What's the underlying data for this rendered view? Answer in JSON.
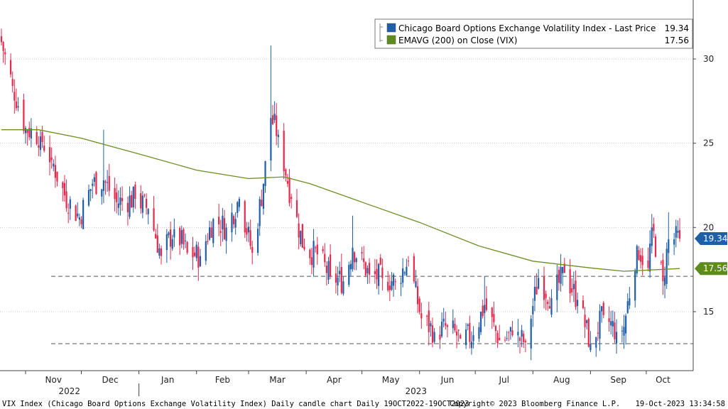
{
  "chart_data": {
    "type": "candlestick",
    "title": "VIX Index (Chicago Board Options Exchange Volatility Index) Daily candle chart  Daily 19OCT2022-19OCT2023",
    "copyright": "Copyright© 2023 Bloomberg Finance L.P.",
    "timestamp": "19-Oct-2023 13:34:58",
    "ylim": [
      11.5,
      33.5
    ],
    "yticks": [
      15,
      20,
      25,
      30
    ],
    "grid": true,
    "legend_placement": "top-right",
    "x_months": [
      "Nov",
      "Dec",
      "Jan",
      "Feb",
      "Mar",
      "Apr",
      "May",
      "Jun",
      "Jul",
      "Aug",
      "Sep",
      "Oct"
    ],
    "x_years": [
      "2022",
      "2023"
    ],
    "support_levels": [
      17.1,
      13.1
    ],
    "legend": [
      {
        "name": "Chicago Board Options Exchange Volatility Index - Last Price",
        "value": "19.34",
        "color": "#1f5fa8"
      },
      {
        "name": "EMAVG (200)  on Close (VIX)",
        "value": "17.56",
        "color": "#5e8c1c"
      }
    ],
    "last_price_tag": {
      "value": "19.34",
      "color": "#1f5fa8"
    },
    "ema_tag": {
      "value": "17.56",
      "color": "#5e8c1c"
    },
    "up_color": "#1f5fa8",
    "down_color": "#e8274b",
    "ema_color": "#6b8e23",
    "ohlc_anchors": [
      {
        "date": "2022-10-19",
        "close": 31.0,
        "high": 31.8
      },
      {
        "date": "2022-10-25",
        "close": 28.4
      },
      {
        "date": "2022-11-01",
        "close": 25.9
      },
      {
        "date": "2022-11-09",
        "close": 25.4
      },
      {
        "date": "2022-11-15",
        "close": 24.0
      },
      {
        "date": "2022-11-22",
        "close": 21.9
      },
      {
        "date": "2022-11-30",
        "close": 20.6
      },
      {
        "date": "2022-12-07",
        "close": 22.6
      },
      {
        "date": "2022-12-13",
        "close": 22.8,
        "high": 25.8
      },
      {
        "date": "2022-12-20",
        "close": 21.5
      },
      {
        "date": "2022-12-30",
        "close": 21.7
      },
      {
        "date": "2023-01-06",
        "close": 21.1
      },
      {
        "date": "2023-01-13",
        "close": 18.3
      },
      {
        "date": "2023-01-20",
        "close": 19.9
      },
      {
        "date": "2023-01-27",
        "close": 18.5
      },
      {
        "date": "2023-02-03",
        "close": 18.3
      },
      {
        "date": "2023-02-10",
        "close": 20.5
      },
      {
        "date": "2023-02-17",
        "close": 20.0
      },
      {
        "date": "2023-02-24",
        "close": 21.7
      },
      {
        "date": "2023-03-03",
        "close": 18.5
      },
      {
        "date": "2023-03-09",
        "close": 22.6
      },
      {
        "date": "2023-03-13",
        "close": 26.5,
        "high": 30.8
      },
      {
        "date": "2023-03-17",
        "close": 25.5
      },
      {
        "date": "2023-03-24",
        "close": 21.7
      },
      {
        "date": "2023-03-31",
        "close": 18.7
      },
      {
        "date": "2023-04-07",
        "close": 18.4
      },
      {
        "date": "2023-04-14",
        "close": 17.1
      },
      {
        "date": "2023-04-21",
        "close": 16.8
      },
      {
        "date": "2023-04-26",
        "close": 18.8,
        "high": 20.7
      },
      {
        "date": "2023-05-05",
        "close": 17.2
      },
      {
        "date": "2023-05-12",
        "close": 17.0
      },
      {
        "date": "2023-05-19",
        "close": 16.8
      },
      {
        "date": "2023-05-26",
        "close": 18.0
      },
      {
        "date": "2023-06-02",
        "close": 14.6
      },
      {
        "date": "2023-06-09",
        "close": 13.8
      },
      {
        "date": "2023-06-16",
        "close": 14.1
      },
      {
        "date": "2023-06-23",
        "close": 13.4
      },
      {
        "date": "2023-06-30",
        "close": 13.6
      },
      {
        "date": "2023-07-06",
        "close": 15.4,
        "high": 17.1
      },
      {
        "date": "2023-07-14",
        "close": 13.3
      },
      {
        "date": "2023-07-21",
        "close": 13.6
      },
      {
        "date": "2023-07-28",
        "close": 13.2
      },
      {
        "date": "2023-08-04",
        "close": 17.0
      },
      {
        "date": "2023-08-11",
        "close": 15.8
      },
      {
        "date": "2023-08-18",
        "close": 17.3,
        "high": 18.2
      },
      {
        "date": "2023-08-25",
        "close": 15.7
      },
      {
        "date": "2023-09-01",
        "close": 13.1
      },
      {
        "date": "2023-09-08",
        "close": 14.8
      },
      {
        "date": "2023-09-15",
        "close": 13.8
      },
      {
        "date": "2023-09-19",
        "close": 14.1,
        "low": 12.8
      },
      {
        "date": "2023-09-26",
        "close": 18.9
      },
      {
        "date": "2023-10-02",
        "close": 17.6
      },
      {
        "date": "2023-10-04",
        "close": 20.0,
        "high": 20.8
      },
      {
        "date": "2023-10-10",
        "close": 16.8,
        "low": 16.0
      },
      {
        "date": "2023-10-13",
        "close": 19.3,
        "high": 20.9
      },
      {
        "date": "2023-10-19",
        "close": 19.34
      }
    ],
    "ema_points": [
      {
        "date": "2022-10-19",
        "value": 25.8
      },
      {
        "date": "2022-11-08",
        "value": 25.8
      },
      {
        "date": "2022-12-01",
        "value": 25.3
      },
      {
        "date": "2023-01-03",
        "value": 24.3
      },
      {
        "date": "2023-02-01",
        "value": 23.4
      },
      {
        "date": "2023-03-01",
        "value": 22.9
      },
      {
        "date": "2023-03-20",
        "value": 23.0
      },
      {
        "date": "2023-04-03",
        "value": 22.6
      },
      {
        "date": "2023-05-01",
        "value": 21.5
      },
      {
        "date": "2023-06-01",
        "value": 20.3
      },
      {
        "date": "2023-07-03",
        "value": 18.9
      },
      {
        "date": "2023-08-01",
        "value": 18.0
      },
      {
        "date": "2023-09-01",
        "value": 17.6
      },
      {
        "date": "2023-09-19",
        "value": 17.4
      },
      {
        "date": "2023-10-19",
        "value": 17.56
      }
    ]
  }
}
